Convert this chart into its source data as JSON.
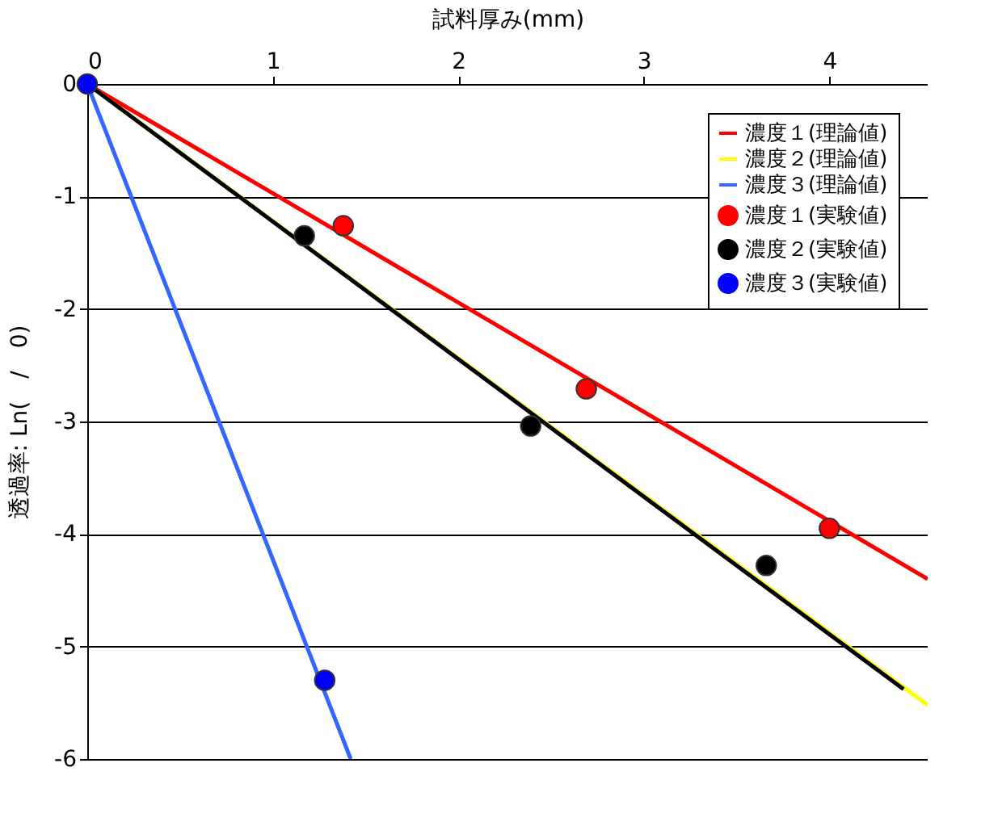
{
  "chart_data": {
    "type": "line",
    "xlabel": "試料厚み(mm)",
    "ylabel": "透過率: Ln(　/　0)",
    "xlim": [
      0,
      4.53
    ],
    "xticks": [
      0,
      1,
      2,
      3,
      4
    ],
    "ylim": [
      -6,
      0
    ],
    "yticks": [
      -6,
      -5,
      -4,
      -3,
      -2,
      -1,
      0
    ],
    "grid": "y",
    "legend": "top right",
    "series": [
      {
        "name": "濃度１(理論値)",
        "color": "#ff0000",
        "x": [
          0,
          4.53
        ],
        "values": [
          0,
          -4.4
        ]
      },
      {
        "name": "濃度２(理論値)",
        "color": "#ffff00",
        "x": [
          0,
          4.53
        ],
        "values": [
          0,
          -5.52
        ]
      },
      {
        "color": "#000000",
        "x": [
          0,
          4.4
        ],
        "values": [
          0,
          -5.38
        ]
      },
      {
        "name": "濃度３(理論値)",
        "color": "#3366ff",
        "x": [
          0,
          1.42
        ],
        "values": [
          0,
          -6.0
        ]
      },
      {
        "name": "濃度１(実験値)",
        "type": "scatter",
        "marker": "circle",
        "color": "#ff0000",
        "x": [
          1.38,
          2.69,
          4.0
        ],
        "values": [
          -1.26,
          -2.71,
          -3.95
        ]
      },
      {
        "name": "濃度２(実験値)",
        "type": "scatter",
        "marker": "circle",
        "color": "#000000",
        "x": [
          1.17,
          2.39,
          3.66
        ],
        "values": [
          -1.35,
          -3.04,
          -4.28
        ]
      },
      {
        "name": "濃度３(実験値)",
        "type": "scatter",
        "marker": "circle",
        "color": "#0000ff",
        "x": [
          0,
          1.28
        ],
        "values": [
          0,
          -5.3
        ]
      }
    ]
  }
}
